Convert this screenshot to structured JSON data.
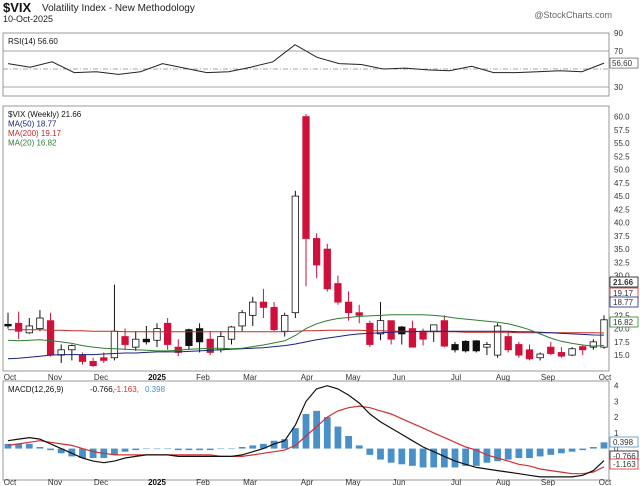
{
  "header": {
    "symbol": "$VIX",
    "name": "Volatility Index - New Methodology",
    "date": "10-Oct-2025",
    "copyright": "@StockCharts.com"
  },
  "colors": {
    "up_candle": "#ffffff",
    "down_candle": "#d0103a",
    "black_candle": "#111111",
    "ma50": "#1a237e",
    "ma200": "#c62828",
    "ma20": "#2e7d32",
    "rsi": "#222222",
    "macd": "#111111",
    "signal": "#d32f2f",
    "histogram": "#4a90c8"
  },
  "chart_data": [
    {
      "type": "line",
      "title": "RSI(14) 56.60",
      "legend": [
        "RSI(14) 56.60"
      ],
      "ylim": [
        20,
        90
      ],
      "yticks": [
        30,
        70,
        90
      ],
      "reference_lines": [
        30,
        50,
        70
      ],
      "last_value_label": "56.60",
      "x": [
        "2024-10-04",
        "2024-10-18",
        "2024-11-01",
        "2024-11-15",
        "2024-11-29",
        "2024-12-13",
        "2024-12-27",
        "2025-01-10",
        "2025-01-24",
        "2025-02-07",
        "2025-02-21",
        "2025-03-07",
        "2025-03-21",
        "2025-04-04",
        "2025-04-18",
        "2025-05-02",
        "2025-05-16",
        "2025-05-30",
        "2025-06-13",
        "2025-06-27",
        "2025-07-11",
        "2025-07-25",
        "2025-08-08",
        "2025-08-22",
        "2025-09-05",
        "2025-09-19",
        "2025-10-03",
        "2025-10-10"
      ],
      "values": [
        56,
        52,
        58,
        46,
        47,
        44,
        47,
        56,
        51,
        46,
        47,
        52,
        58,
        77,
        63,
        56,
        55,
        50,
        51,
        49,
        48,
        53,
        46,
        46,
        47,
        48,
        47,
        56.6
      ]
    },
    {
      "type": "candlestick",
      "title": "$VIX (Weekly) 21.66",
      "legend": [
        "$VIX (Weekly) 21.66",
        "MA(50) 18.77",
        "MA(200) 19.17",
        "MA(20) 16.82"
      ],
      "ylim": [
        12,
        62
      ],
      "yticks": [
        15.0,
        17.5,
        20.0,
        22.5,
        25.0,
        27.5,
        30.0,
        32.5,
        35.0,
        37.5,
        40.0,
        42.5,
        45.0,
        47.5,
        50.0,
        52.5,
        55.0,
        57.5,
        60.0
      ],
      "ytick_labels": [
        "15.0",
        "17.5",
        "20.0",
        "22.5",
        "25.0",
        "27.5",
        "30.0",
        "32.5",
        "35.0",
        "37.5",
        "40.0",
        "42.5",
        "45.0",
        "47.5",
        "50.0",
        "52.5",
        "55.0",
        "57.5",
        "60.0"
      ],
      "last_value_labels": [
        "21.66",
        "19.17",
        "18.77",
        "16.82"
      ],
      "x_labels": [
        "Oct",
        "Nov",
        "Dec",
        "2025",
        "Feb",
        "Mar",
        "Apr",
        "May",
        "Jun",
        "Jul",
        "Aug",
        "Sep",
        "Oct"
      ],
      "candles": [
        {
          "o": 20.5,
          "h": 23.0,
          "l": 20.0,
          "c": 20.8,
          "color": "black"
        },
        {
          "o": 19.5,
          "h": 23.2,
          "l": 18.0,
          "c": 21.0,
          "color": "down"
        },
        {
          "o": 20.5,
          "h": 22.0,
          "l": 19.0,
          "c": 19.2,
          "color": "up"
        },
        {
          "o": 20.0,
          "h": 23.5,
          "l": 19.5,
          "c": 22.0,
          "color": "up"
        },
        {
          "o": 21.5,
          "h": 23.0,
          "l": 14.7,
          "c": 15.0,
          "color": "down"
        },
        {
          "o": 15.0,
          "h": 17.0,
          "l": 13.5,
          "c": 16.0,
          "color": "up"
        },
        {
          "o": 16.0,
          "h": 17.0,
          "l": 14.0,
          "c": 16.8,
          "color": "up"
        },
        {
          "o": 15.0,
          "h": 15.5,
          "l": 13.2,
          "c": 13.8,
          "color": "down"
        },
        {
          "o": 13.8,
          "h": 14.5,
          "l": 12.8,
          "c": 13.0,
          "color": "down"
        },
        {
          "o": 14.0,
          "h": 15.5,
          "l": 13.5,
          "c": 14.5,
          "color": "down"
        },
        {
          "o": 14.5,
          "h": 28.3,
          "l": 14.0,
          "c": 19.5,
          "color": "up"
        },
        {
          "o": 18.5,
          "h": 20.0,
          "l": 16.0,
          "c": 17.0,
          "color": "down"
        },
        {
          "o": 16.5,
          "h": 19.5,
          "l": 15.8,
          "c": 18.0,
          "color": "up"
        },
        {
          "o": 18.0,
          "h": 20.5,
          "l": 17.0,
          "c": 17.5,
          "color": "black"
        },
        {
          "o": 17.8,
          "h": 21.0,
          "l": 16.5,
          "c": 20.0,
          "color": "up"
        },
        {
          "o": 21.0,
          "h": 22.0,
          "l": 16.0,
          "c": 17.0,
          "color": "down"
        },
        {
          "o": 16.5,
          "h": 18.0,
          "l": 14.8,
          "c": 15.5,
          "color": "down"
        },
        {
          "o": 16.8,
          "h": 20.0,
          "l": 16.0,
          "c": 19.8,
          "color": "black"
        },
        {
          "o": 17.5,
          "h": 21.0,
          "l": 15.5,
          "c": 20.0,
          "color": "black"
        },
        {
          "o": 18.0,
          "h": 19.5,
          "l": 15.0,
          "c": 15.5,
          "color": "down"
        },
        {
          "o": 16.0,
          "h": 19.5,
          "l": 15.5,
          "c": 18.5,
          "color": "up"
        },
        {
          "o": 18.0,
          "h": 20.5,
          "l": 17.0,
          "c": 20.3,
          "color": "up"
        },
        {
          "o": 20.5,
          "h": 23.5,
          "l": 19.5,
          "c": 23.0,
          "color": "up"
        },
        {
          "o": 22.5,
          "h": 26.0,
          "l": 20.5,
          "c": 25.0,
          "color": "up"
        },
        {
          "o": 25.0,
          "h": 27.5,
          "l": 22.0,
          "c": 24.0,
          "color": "down"
        },
        {
          "o": 24.0,
          "h": 25.0,
          "l": 19.5,
          "c": 19.8,
          "color": "down"
        },
        {
          "o": 19.5,
          "h": 23.0,
          "l": 18.5,
          "c": 22.5,
          "color": "up"
        },
        {
          "o": 23.0,
          "h": 46.0,
          "l": 22.0,
          "c": 45.0,
          "color": "up"
        },
        {
          "o": 60.0,
          "h": 60.5,
          "l": 28.0,
          "c": 37.0,
          "color": "down"
        },
        {
          "o": 37.0,
          "h": 38.0,
          "l": 29.5,
          "c": 32.0,
          "color": "down"
        },
        {
          "o": 35.0,
          "h": 36.0,
          "l": 27.0,
          "c": 27.5,
          "color": "down"
        },
        {
          "o": 28.5,
          "h": 30.0,
          "l": 24.5,
          "c": 25.0,
          "color": "down"
        },
        {
          "o": 25.0,
          "h": 27.0,
          "l": 21.5,
          "c": 23.0,
          "color": "down"
        },
        {
          "o": 23.0,
          "h": 24.5,
          "l": 21.0,
          "c": 22.5,
          "color": "down"
        },
        {
          "o": 21.0,
          "h": 21.5,
          "l": 16.5,
          "c": 17.0,
          "color": "down"
        },
        {
          "o": 19.0,
          "h": 25.0,
          "l": 17.8,
          "c": 21.5,
          "color": "up"
        },
        {
          "o": 21.5,
          "h": 21.5,
          "l": 17.0,
          "c": 18.0,
          "color": "down"
        },
        {
          "o": 19.0,
          "h": 20.5,
          "l": 17.0,
          "c": 20.3,
          "color": "black"
        },
        {
          "o": 20.0,
          "h": 21.5,
          "l": 16.5,
          "c": 16.5,
          "color": "down"
        },
        {
          "o": 18.0,
          "h": 20.0,
          "l": 16.8,
          "c": 19.5,
          "color": "down"
        },
        {
          "o": 19.5,
          "h": 20.5,
          "l": 17.5,
          "c": 20.7,
          "color": "up"
        },
        {
          "o": 21.5,
          "h": 22.5,
          "l": 16.5,
          "c": 16.7,
          "color": "down"
        },
        {
          "o": 16.0,
          "h": 17.5,
          "l": 15.5,
          "c": 17.0,
          "color": "black"
        },
        {
          "o": 15.8,
          "h": 17.8,
          "l": 15.5,
          "c": 17.6,
          "color": "black"
        },
        {
          "o": 15.8,
          "h": 17.8,
          "l": 15.5,
          "c": 17.7,
          "color": "black"
        },
        {
          "o": 17.0,
          "h": 17.5,
          "l": 15.0,
          "c": 16.5,
          "color": "up"
        },
        {
          "o": 15.0,
          "h": 21.0,
          "l": 14.5,
          "c": 20.5,
          "color": "up"
        },
        {
          "o": 18.5,
          "h": 19.5,
          "l": 15.5,
          "c": 16.0,
          "color": "down"
        },
        {
          "o": 17.0,
          "h": 17.5,
          "l": 14.5,
          "c": 15.0,
          "color": "down"
        },
        {
          "o": 16.0,
          "h": 17.0,
          "l": 14.0,
          "c": 14.3,
          "color": "down"
        },
        {
          "o": 14.5,
          "h": 15.5,
          "l": 14.0,
          "c": 15.2,
          "color": "up"
        },
        {
          "o": 16.5,
          "h": 17.5,
          "l": 15.0,
          "c": 15.3,
          "color": "down"
        },
        {
          "o": 15.5,
          "h": 16.5,
          "l": 14.5,
          "c": 14.8,
          "color": "down"
        },
        {
          "o": 15.0,
          "h": 16.5,
          "l": 14.8,
          "c": 16.2,
          "color": "up"
        },
        {
          "o": 16.0,
          "h": 17.0,
          "l": 15.0,
          "c": 16.6,
          "color": "down"
        },
        {
          "o": 16.5,
          "h": 18.0,
          "l": 16.0,
          "c": 17.5,
          "color": "up"
        },
        {
          "o": 16.5,
          "h": 22.5,
          "l": 16.2,
          "c": 21.66,
          "color": "up"
        }
      ],
      "ma50": [
        14.3,
        14.4,
        14.6,
        14.8,
        15.0,
        15.1,
        15.1,
        15.1,
        15.1,
        15.2,
        15.3,
        15.4,
        15.4,
        15.5,
        15.6,
        15.6,
        15.6,
        15.7,
        15.8,
        15.9,
        16.0,
        16.1,
        16.2,
        16.3,
        16.4,
        16.6,
        16.8,
        17.1,
        17.5,
        17.9,
        18.2,
        18.5,
        18.8,
        19.0,
        19.1,
        19.2,
        19.3,
        19.4,
        19.4,
        19.5,
        19.5,
        19.5,
        19.5,
        19.5,
        19.5,
        19.5,
        19.5,
        19.5,
        19.4,
        19.4,
        19.3,
        19.2,
        19.1,
        19.0,
        18.9,
        18.8,
        18.77
      ],
      "ma200": [
        19.8,
        19.8,
        19.8,
        19.8,
        19.7,
        19.7,
        19.6,
        19.6,
        19.5,
        19.5,
        19.5,
        19.4,
        19.4,
        19.4,
        19.4,
        19.4,
        19.4,
        19.4,
        19.4,
        19.4,
        19.4,
        19.4,
        19.4,
        19.4,
        19.4,
        19.4,
        19.4,
        19.5,
        19.6,
        19.6,
        19.7,
        19.7,
        19.7,
        19.7,
        19.6,
        19.6,
        19.5,
        19.5,
        19.5,
        19.4,
        19.4,
        19.4,
        19.4,
        19.3,
        19.3,
        19.3,
        19.3,
        19.3,
        19.2,
        19.2,
        19.2,
        19.2,
        19.2,
        19.2,
        19.2,
        19.2,
        19.17
      ],
      "ma20": [
        17.8,
        17.7,
        17.8,
        17.9,
        17.7,
        17.5,
        17.2,
        16.8,
        16.5,
        16.3,
        16.2,
        16.1,
        16.0,
        15.9,
        15.8,
        15.8,
        15.9,
        16.1,
        16.2,
        16.3,
        16.3,
        16.2,
        16.3,
        16.6,
        16.9,
        17.3,
        17.7,
        18.7,
        20.0,
        20.9,
        21.5,
        21.9,
        22.1,
        22.3,
        22.4,
        22.5,
        22.6,
        22.6,
        22.6,
        22.6,
        22.5,
        22.3,
        22.0,
        21.8,
        21.6,
        21.4,
        21.2,
        20.9,
        20.4,
        19.8,
        19.0,
        18.2,
        17.6,
        17.2,
        16.9,
        16.7,
        16.82
      ]
    },
    {
      "type": "line",
      "title": "MACD(12,26,9) -0.766, -1.163, 0.398",
      "legend": [
        "MACD(12,26,9)",
        "-0.766,",
        "-1.163,",
        "0.398"
      ],
      "ylim": [
        -2.0,
        4.3
      ],
      "yticks": [
        -1,
        0,
        1,
        2,
        3,
        4
      ],
      "last_value_labels": [
        "0.398",
        "-0.766",
        "-1.163"
      ],
      "x_labels": [
        "Oct",
        "Nov",
        "Dec",
        "2025",
        "Feb",
        "Mar",
        "Apr",
        "May",
        "Jun",
        "Jul",
        "Aug",
        "Sep",
        "Oct"
      ],
      "series": [
        {
          "name": "MACD",
          "values": [
            0.5,
            0.6,
            0.7,
            0.6,
            0.3,
            0.0,
            -0.3,
            -0.6,
            -0.8,
            -0.9,
            -0.8,
            -0.6,
            -0.5,
            -0.4,
            -0.4,
            -0.4,
            -0.5,
            -0.5,
            -0.5,
            -0.5,
            -0.5,
            -0.5,
            -0.4,
            -0.2,
            0.0,
            0.3,
            0.5,
            1.5,
            3.0,
            3.8,
            4.0,
            3.8,
            3.4,
            2.9,
            2.2,
            1.7,
            1.3,
            0.9,
            0.5,
            0.1,
            -0.2,
            -0.5,
            -0.8,
            -1.0,
            -1.2,
            -1.3,
            -1.4,
            -1.5,
            -1.6,
            -1.7,
            -1.8,
            -1.8,
            -1.8,
            -1.8,
            -1.7,
            -1.4,
            -0.766
          ]
        },
        {
          "name": "Signal",
          "values": [
            0.2,
            0.3,
            0.4,
            0.5,
            0.4,
            0.3,
            0.2,
            0.0,
            -0.2,
            -0.3,
            -0.4,
            -0.4,
            -0.4,
            -0.4,
            -0.4,
            -0.4,
            -0.4,
            -0.4,
            -0.4,
            -0.4,
            -0.5,
            -0.5,
            -0.5,
            -0.4,
            -0.3,
            -0.2,
            -0.1,
            0.2,
            0.8,
            1.4,
            2.0,
            2.4,
            2.6,
            2.7,
            2.6,
            2.4,
            2.2,
            1.9,
            1.6,
            1.3,
            1.0,
            0.7,
            0.4,
            0.1,
            -0.1,
            -0.4,
            -0.6,
            -0.8,
            -1.0,
            -1.1,
            -1.3,
            -1.4,
            -1.5,
            -1.6,
            -1.6,
            -1.5,
            -1.163
          ]
        },
        {
          "name": "Histogram",
          "values": [
            0.3,
            0.3,
            0.3,
            0.1,
            -0.1,
            -0.3,
            -0.5,
            -0.6,
            -0.6,
            -0.6,
            -0.4,
            -0.2,
            -0.1,
            0.0,
            0.0,
            0.0,
            -0.1,
            -0.1,
            -0.1,
            -0.1,
            0.0,
            0.0,
            0.1,
            0.2,
            0.3,
            0.5,
            0.6,
            1.3,
            2.2,
            2.4,
            2.0,
            1.4,
            0.8,
            0.2,
            -0.4,
            -0.7,
            -0.9,
            -1.0,
            -1.1,
            -1.2,
            -1.2,
            -1.2,
            -1.2,
            -1.1,
            -1.1,
            -0.9,
            -0.8,
            -0.7,
            -0.6,
            -0.6,
            -0.5,
            -0.4,
            -0.3,
            -0.2,
            -0.1,
            0.1,
            0.398
          ]
        }
      ]
    }
  ]
}
